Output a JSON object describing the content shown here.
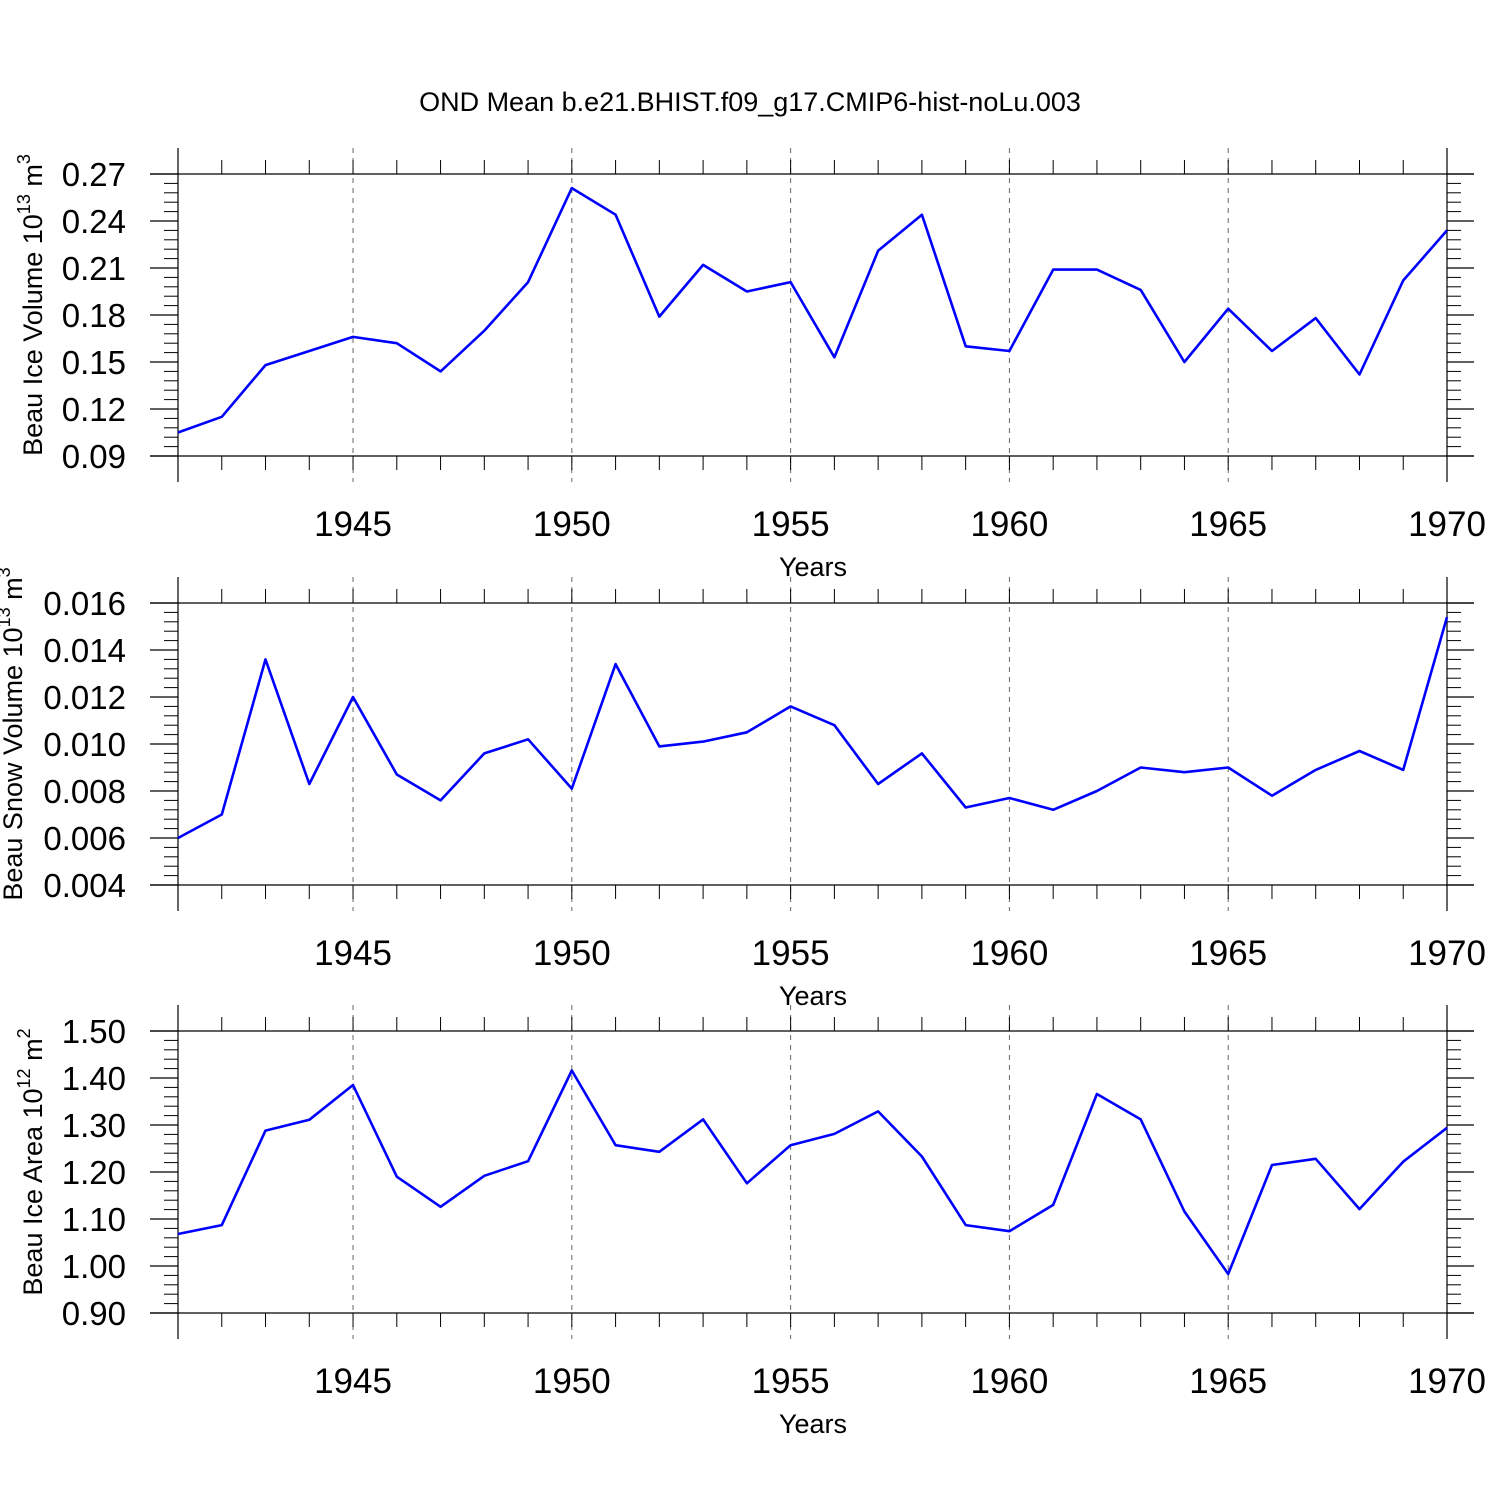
{
  "title": "OND Mean b.e21.BHIST.f09_g17.CMIP6-hist-noLu.003",
  "colors": {
    "line": "#0000ff",
    "axis": "#000000",
    "grid": "#666666"
  },
  "chart_data": [
    {
      "type": "line",
      "xlabel": "Years",
      "ylabel": {
        "text": "Beau Ice Volume 10",
        "sup1": "13",
        "mid": " m",
        "sup2": "3"
      },
      "xlim": [
        1941,
        1970
      ],
      "ylim": [
        0.09,
        0.27
      ],
      "yticks": [
        "0.09",
        "0.12",
        "0.15",
        "0.18",
        "0.21",
        "0.24",
        "0.27"
      ],
      "xticks": [
        "1945",
        "1950",
        "1955",
        "1960",
        "1965",
        "1970"
      ],
      "grid_x": true,
      "x": [
        1941,
        1942,
        1943,
        1944,
        1945,
        1946,
        1947,
        1948,
        1949,
        1950,
        1951,
        1952,
        1953,
        1954,
        1955,
        1956,
        1957,
        1958,
        1959,
        1960,
        1961,
        1962,
        1963,
        1964,
        1965,
        1966,
        1967,
        1968,
        1969,
        1970
      ],
      "series": [
        {
          "values": [
            0.105,
            0.115,
            0.148,
            0.157,
            0.166,
            0.162,
            0.144,
            0.17,
            0.201,
            0.261,
            0.244,
            0.179,
            0.212,
            0.195,
            0.201,
            0.153,
            0.221,
            0.244,
            0.16,
            0.157,
            0.209,
            0.209,
            0.196,
            0.15,
            0.184,
            0.157,
            0.178,
            0.142,
            0.202,
            0.234
          ]
        }
      ]
    },
    {
      "type": "line",
      "xlabel": "Years",
      "ylabel": {
        "text": "Beau Snow Volume 10",
        "sup1": "13",
        "mid": " m",
        "sup2": "3"
      },
      "xlim": [
        1941,
        1970
      ],
      "ylim": [
        0.004,
        0.016
      ],
      "yticks": [
        "0.004",
        "0.006",
        "0.008",
        "0.010",
        "0.012",
        "0.014",
        "0.016"
      ],
      "xticks": [
        "1945",
        "1950",
        "1955",
        "1960",
        "1965",
        "1970"
      ],
      "grid_x": true,
      "x": [
        1941,
        1942,
        1943,
        1944,
        1945,
        1946,
        1947,
        1948,
        1949,
        1950,
        1951,
        1952,
        1953,
        1954,
        1955,
        1956,
        1957,
        1958,
        1959,
        1960,
        1961,
        1962,
        1963,
        1964,
        1965,
        1966,
        1967,
        1968,
        1969,
        1970
      ],
      "series": [
        {
          "values": [
            0.006,
            0.007,
            0.0136,
            0.0083,
            0.012,
            0.0087,
            0.0076,
            0.0096,
            0.0102,
            0.0081,
            0.0134,
            0.0099,
            0.0101,
            0.0105,
            0.0116,
            0.0108,
            0.0083,
            0.0096,
            0.0073,
            0.0077,
            0.0072,
            0.008,
            0.009,
            0.0088,
            0.009,
            0.0078,
            0.0089,
            0.0097,
            0.0089,
            0.0154
          ]
        }
      ]
    },
    {
      "type": "line",
      "xlabel": "Years",
      "ylabel": {
        "text": "Beau Ice Area 10",
        "sup1": "12",
        "mid": " m",
        "sup2": "2"
      },
      "xlim": [
        1941,
        1970
      ],
      "ylim": [
        0.9,
        1.5
      ],
      "yticks": [
        "0.90",
        "1.00",
        "1.10",
        "1.20",
        "1.30",
        "1.40",
        "1.50"
      ],
      "xticks": [
        "1945",
        "1950",
        "1955",
        "1960",
        "1965",
        "1970"
      ],
      "grid_x": true,
      "x": [
        1941,
        1942,
        1943,
        1944,
        1945,
        1946,
        1947,
        1948,
        1949,
        1950,
        1951,
        1952,
        1953,
        1954,
        1955,
        1956,
        1957,
        1958,
        1959,
        1960,
        1961,
        1962,
        1963,
        1964,
        1965,
        1966,
        1967,
        1968,
        1969,
        1970
      ],
      "series": [
        {
          "values": [
            1.068,
            1.087,
            1.288,
            1.311,
            1.385,
            1.19,
            1.126,
            1.192,
            1.223,
            1.416,
            1.257,
            1.243,
            1.312,
            1.176,
            1.257,
            1.281,
            1.329,
            1.233,
            1.087,
            1.074,
            1.13,
            1.366,
            1.312,
            1.116,
            0.983,
            1.215,
            1.228,
            1.121,
            1.222,
            1.294
          ]
        }
      ]
    }
  ]
}
